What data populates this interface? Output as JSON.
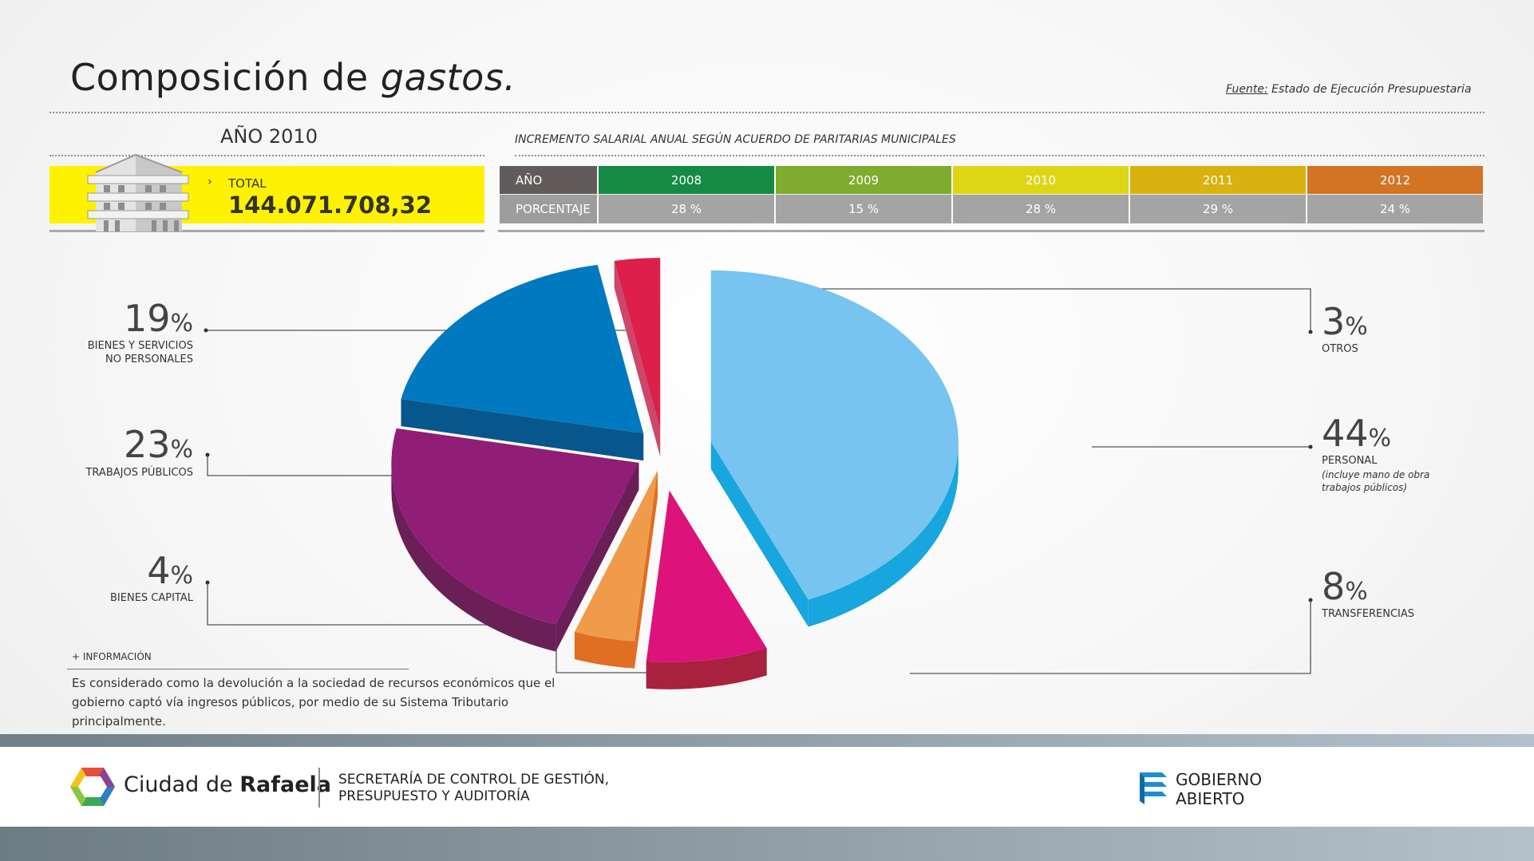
{
  "header": {
    "title_main": "Composición de",
    "title_italic": "gastos.",
    "source_label": "Fuente:",
    "source_text": "Estado de Ejecución Presupuestaria"
  },
  "year_block": {
    "year_label": "AÑO 2010",
    "total_label": "TOTAL",
    "total_value": "144.071.708,32",
    "arrow": "›"
  },
  "salary_increase": {
    "title": "INCREMENTO SALARIAL ANUAL SEGÚN ACUERDO DE PARITARIAS MUNICIPALES",
    "row_year_label": "AÑO",
    "row_pct_label": "PORCENTAJE",
    "columns": [
      {
        "year": "2008",
        "pct": "28 %",
        "color": "#148a45"
      },
      {
        "year": "2009",
        "pct": "15 %",
        "color": "#7fac2e"
      },
      {
        "year": "2010",
        "pct": "28 %",
        "color": "#ded517"
      },
      {
        "year": "2011",
        "pct": "29 %",
        "color": "#d9b20f"
      },
      {
        "year": "2012",
        "pct": "24 %",
        "color": "#d37324"
      }
    ]
  },
  "chart_data": {
    "type": "pie",
    "title": "",
    "slices": [
      {
        "label": "PERSONAL",
        "value": 44,
        "value_text": "44",
        "pct_sign": "%",
        "note": [
          "(incluye mano de obra",
          "trabajos públicos)"
        ],
        "color": "#76c4ef",
        "side": "#17a6dd"
      },
      {
        "label": "TRANSFERENCIAS",
        "value": 8,
        "value_text": "8",
        "pct_sign": "%",
        "color": "#dd137b",
        "side": "#a8223f"
      },
      {
        "label": "BIENES CAPITAL",
        "value": 4,
        "value_text": "4",
        "pct_sign": "%",
        "color": "#f09b49",
        "side": "#e06e23"
      },
      {
        "label": "TRABAJOS PÚBLICOS",
        "value": 23,
        "value_text": "23",
        "pct_sign": "%",
        "color": "#901d76",
        "side": "#6a1f56"
      },
      {
        "label": [
          "BIENES Y SERVICIOS",
          "NO PERSONALES"
        ],
        "value": 19,
        "value_text": "19",
        "pct_sign": "%",
        "color": "#0079c1",
        "side": "#08578c"
      },
      {
        "label": "OTROS",
        "value": 3,
        "value_text": "3",
        "pct_sign": "%",
        "color": "#dc204a",
        "side": "#cc476b"
      }
    ]
  },
  "info": {
    "title": "+ INFORMACIÓN",
    "text": "Es considerado como la devolución a la sociedad de recursos económicos que el gobierno captó vía ingresos públicos, por medio de su Sistema Tributario principalmente."
  },
  "footer": {
    "city_prefix": "Ciudad de",
    "city_name": "Rafaela",
    "secretaria_line1": "SECRETARÍA DE CONTROL DE GESTIÓN,",
    "secretaria_line2": "PRESUPUESTO Y AUDITORÍA",
    "gobierno_line1": "GOBIERNO",
    "gobierno_line2": "ABIERTO"
  }
}
